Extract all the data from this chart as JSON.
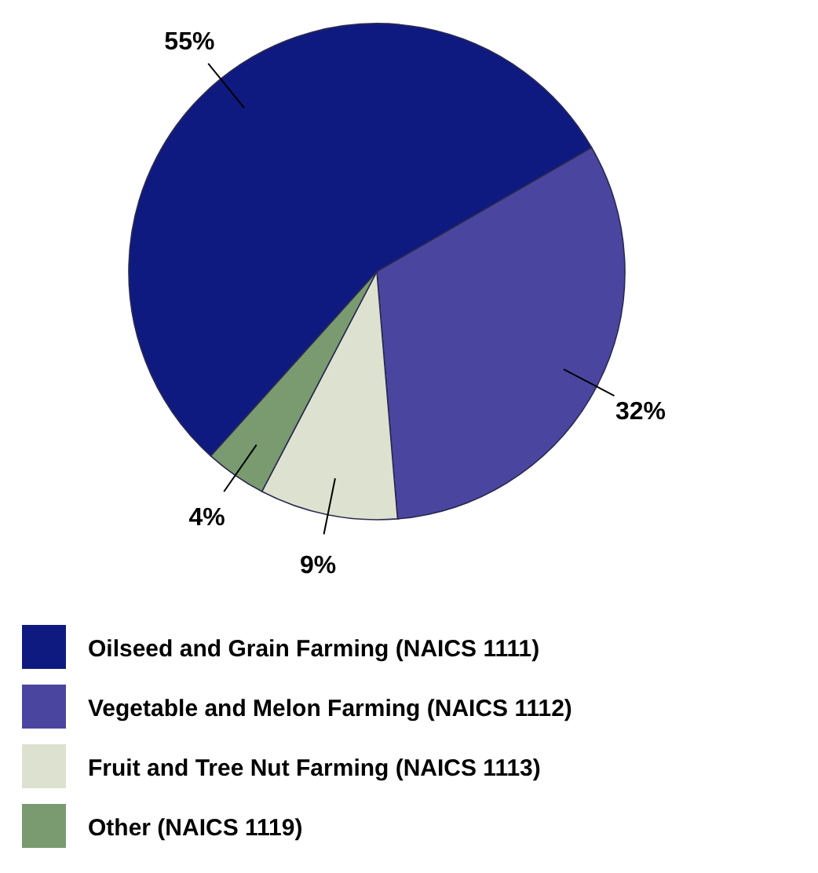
{
  "chart_data": {
    "type": "pie",
    "categories": [
      "Oilseed and Grain Farming (NAICS 1111)",
      "Vegetable and Melon Farming (NAICS 1112)",
      "Fruit and Tree Nut Farming (NAICS 1113)",
      "Other (NAICS 1119)"
    ],
    "values": [
      55,
      32,
      9,
      4
    ],
    "value_labels": [
      "55%",
      "32%",
      "9%",
      "4%"
    ],
    "colors": [
      "#0f1a80",
      "#4a46a0",
      "#dde2d0",
      "#7a9a70"
    ],
    "legend": "bottom"
  }
}
